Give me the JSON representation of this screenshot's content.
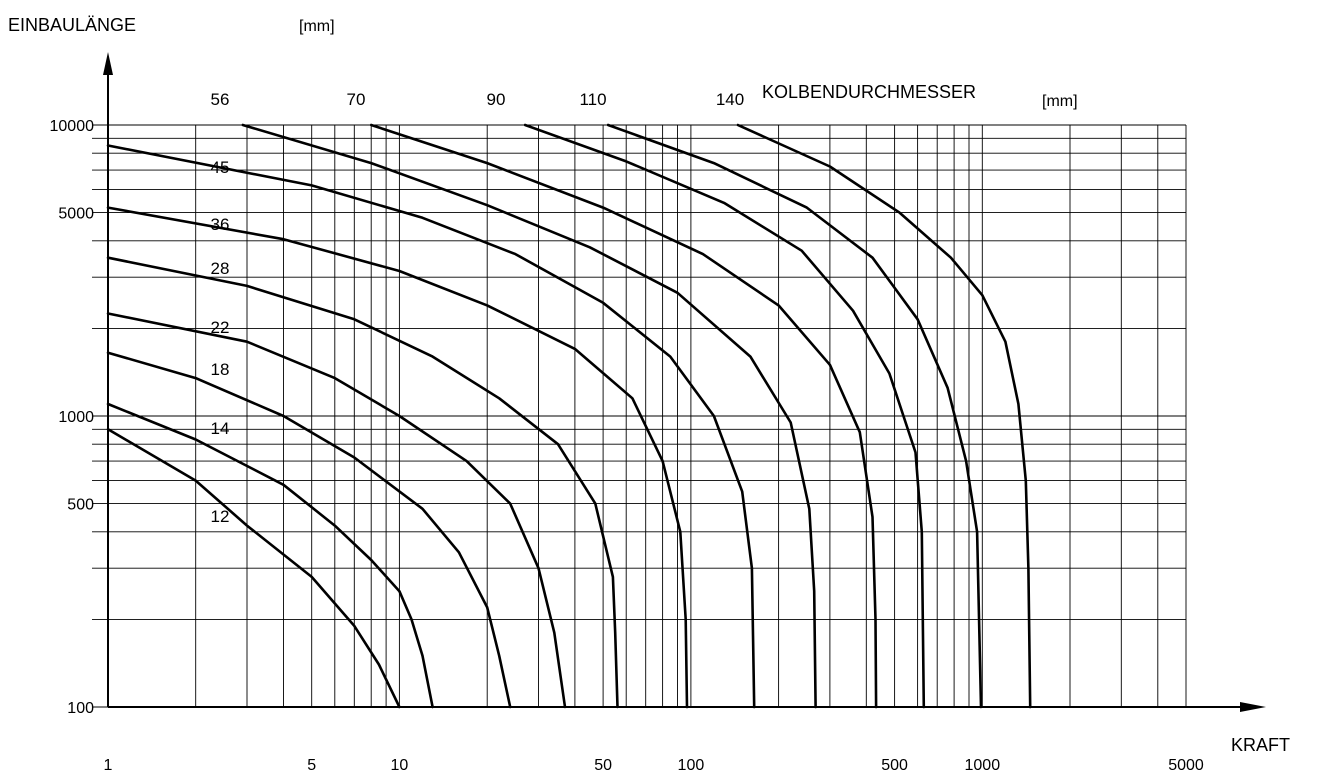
{
  "chart_data": {
    "type": "line",
    "x_scale": "log",
    "y_scale": "log",
    "xlim": [
      1,
      5000
    ],
    "ylim": [
      100,
      10000
    ],
    "xlabel": "KRAFT",
    "ylabel": "EINBAULÄNGE",
    "ylabel_unit": "[mm]",
    "series_group_label": "KOLBENDURCHMESSER",
    "series_group_unit": "[mm]",
    "grid": true,
    "x_ticks": [
      1,
      5,
      10,
      50,
      100,
      500,
      1000,
      5000
    ],
    "x_tick_labels": [
      "1",
      "5",
      "10",
      "50",
      "100",
      "500",
      "1000",
      "5000"
    ],
    "y_ticks": [
      100,
      500,
      1000,
      5000,
      10000
    ],
    "y_tick_labels": [
      "100",
      "500",
      "1000",
      "5000",
      "10000"
    ],
    "series": [
      {
        "name": "12",
        "points": [
          [
            1,
            900
          ],
          [
            2,
            600
          ],
          [
            3,
            420
          ],
          [
            5,
            280
          ],
          [
            7,
            190
          ],
          [
            8.5,
            140
          ],
          [
            10,
            100
          ]
        ]
      },
      {
        "name": "14",
        "points": [
          [
            1,
            1100
          ],
          [
            2,
            830
          ],
          [
            4,
            580
          ],
          [
            6,
            420
          ],
          [
            8,
            320
          ],
          [
            10,
            250
          ],
          [
            11,
            200
          ],
          [
            12,
            150
          ],
          [
            13,
            100
          ]
        ]
      },
      {
        "name": "18",
        "points": [
          [
            1,
            1650
          ],
          [
            2,
            1350
          ],
          [
            4,
            1000
          ],
          [
            7,
            720
          ],
          [
            12,
            480
          ],
          [
            16,
            340
          ],
          [
            20,
            220
          ],
          [
            22,
            150
          ],
          [
            24,
            100
          ]
        ]
      },
      {
        "name": "22",
        "points": [
          [
            1,
            2250
          ],
          [
            3,
            1800
          ],
          [
            6,
            1350
          ],
          [
            10,
            1000
          ],
          [
            17,
            700
          ],
          [
            24,
            500
          ],
          [
            30,
            300
          ],
          [
            34,
            180
          ],
          [
            37,
            100
          ]
        ]
      },
      {
        "name": "28",
        "points": [
          [
            1,
            3500
          ],
          [
            3,
            2800
          ],
          [
            7,
            2150
          ],
          [
            13,
            1600
          ],
          [
            22,
            1150
          ],
          [
            35,
            800
          ],
          [
            47,
            500
          ],
          [
            54,
            280
          ],
          [
            55,
            180
          ],
          [
            56,
            100
          ]
        ]
      },
      {
        "name": "36",
        "points": [
          [
            1,
            5200
          ],
          [
            4,
            4050
          ],
          [
            10,
            3150
          ],
          [
            20,
            2400
          ],
          [
            40,
            1700
          ],
          [
            63,
            1150
          ],
          [
            80,
            700
          ],
          [
            92,
            400
          ],
          [
            96,
            200
          ],
          [
            97,
            100
          ]
        ]
      },
      {
        "name": "45",
        "points": [
          [
            1,
            8500
          ],
          [
            5,
            6200
          ],
          [
            12,
            4800
          ],
          [
            25,
            3600
          ],
          [
            50,
            2450
          ],
          [
            85,
            1600
          ],
          [
            120,
            1000
          ],
          [
            150,
            550
          ],
          [
            162,
            300
          ],
          [
            165,
            100
          ]
        ]
      },
      {
        "name": "56",
        "points": [
          [
            2.9,
            10000
          ],
          [
            8,
            7400
          ],
          [
            20,
            5300
          ],
          [
            45,
            3800
          ],
          [
            90,
            2650
          ],
          [
            160,
            1600
          ],
          [
            220,
            950
          ],
          [
            255,
            480
          ],
          [
            265,
            250
          ],
          [
            268,
            100
          ]
        ]
      },
      {
        "name": "70",
        "points": [
          [
            8,
            10000
          ],
          [
            20,
            7400
          ],
          [
            50,
            5200
          ],
          [
            110,
            3600
          ],
          [
            200,
            2400
          ],
          [
            300,
            1500
          ],
          [
            380,
            880
          ],
          [
            420,
            450
          ],
          [
            430,
            200
          ],
          [
            432,
            100
          ]
        ]
      },
      {
        "name": "90",
        "points": [
          [
            27,
            10000
          ],
          [
            60,
            7500
          ],
          [
            130,
            5400
          ],
          [
            240,
            3700
          ],
          [
            360,
            2300
          ],
          [
            480,
            1400
          ],
          [
            590,
            750
          ],
          [
            620,
            400
          ],
          [
            630,
            100
          ]
        ]
      },
      {
        "name": "110",
        "points": [
          [
            52,
            10000
          ],
          [
            120,
            7400
          ],
          [
            250,
            5200
          ],
          [
            420,
            3500
          ],
          [
            600,
            2150
          ],
          [
            760,
            1250
          ],
          [
            880,
            700
          ],
          [
            960,
            400
          ],
          [
            990,
            100
          ]
        ]
      },
      {
        "name": "140",
        "points": [
          [
            145,
            10000
          ],
          [
            300,
            7200
          ],
          [
            520,
            5000
          ],
          [
            780,
            3500
          ],
          [
            1000,
            2600
          ],
          [
            1200,
            1800
          ],
          [
            1330,
            1100
          ],
          [
            1410,
            600
          ],
          [
            1440,
            300
          ],
          [
            1460,
            100
          ]
        ]
      }
    ]
  }
}
